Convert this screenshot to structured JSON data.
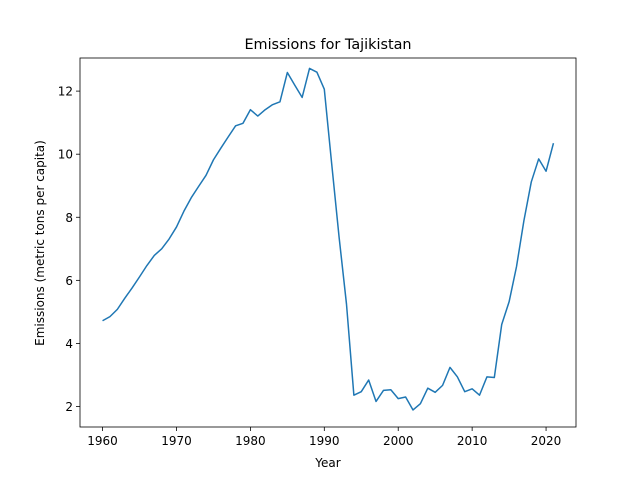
{
  "chart_data": {
    "type": "line",
    "title": "Emissions for Tajikistan",
    "xlabel": "Year",
    "ylabel": "Emissions (metric tons per capita)",
    "xlim": [
      1956.95,
      2024.05
    ],
    "ylim": [
      1.35,
      13.05
    ],
    "xticks": [
      1960,
      1970,
      1980,
      1990,
      2000,
      2010,
      2020
    ],
    "yticks": [
      2,
      4,
      6,
      8,
      10,
      12
    ],
    "grid": false,
    "legend": "none",
    "series_color": "#1f77b4",
    "series": [
      {
        "x": [
          1960,
          1961,
          1962,
          1963,
          1964,
          1965,
          1966,
          1967,
          1968,
          1969,
          1970,
          1971,
          1972,
          1973,
          1974,
          1975,
          1976,
          1977,
          1978,
          1979,
          1980,
          1981,
          1982,
          1983,
          1984,
          1985,
          1986,
          1987,
          1988,
          1989,
          1990,
          1991,
          1992,
          1993,
          1994,
          1995,
          1996,
          1997,
          1998,
          1999,
          2000,
          2001,
          2002,
          2003,
          2004,
          2005,
          2006,
          2007,
          2008,
          2009,
          2010,
          2011,
          2012,
          2013,
          2014,
          2015,
          2016,
          2017,
          2018,
          2019,
          2020,
          2021
        ],
        "values": [
          4.72,
          4.85,
          5.08,
          5.43,
          5.76,
          6.11,
          6.47,
          6.79,
          7.0,
          7.31,
          7.69,
          8.19,
          8.62,
          8.98,
          9.33,
          9.82,
          10.19,
          10.55,
          10.9,
          10.98,
          11.41,
          11.21,
          11.41,
          11.57,
          11.66,
          12.59,
          12.19,
          11.8,
          12.72,
          12.6,
          12.06,
          9.69,
          7.37,
          5.25,
          2.36,
          2.47,
          2.84,
          2.16,
          2.51,
          2.53,
          2.25,
          2.3,
          1.89,
          2.09,
          2.58,
          2.45,
          2.67,
          3.24,
          2.94,
          2.47,
          2.56,
          2.36,
          2.94,
          2.92,
          4.6,
          5.32,
          6.43,
          7.89,
          9.12,
          9.85,
          9.46,
          10.35
        ]
      }
    ]
  }
}
